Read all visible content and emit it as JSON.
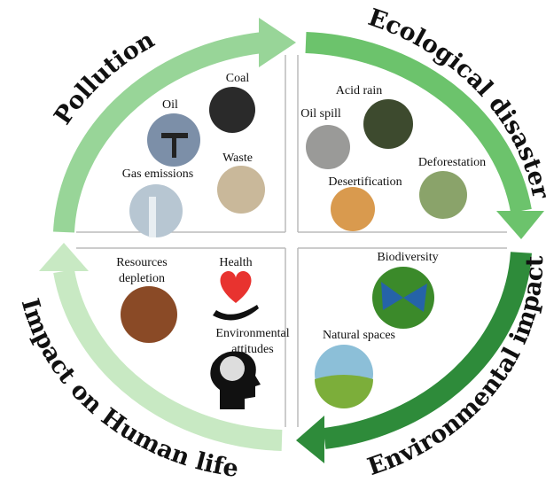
{
  "quadrants": [
    {
      "title": "Pollution",
      "items": [
        [
          "Coal"
        ],
        [
          "Oil"
        ],
        [
          "Waste"
        ],
        [
          "Gas emissions"
        ]
      ]
    },
    {
      "title": "Ecological disaster",
      "items": [
        [
          "Acid rain"
        ],
        [
          "Oil spill"
        ],
        [
          "Deforestation"
        ],
        [
          "Desertification"
        ]
      ]
    },
    {
      "title": "Environmental impact",
      "items": [
        [
          "Biodiversity"
        ],
        [
          "Natural spaces"
        ]
      ]
    },
    {
      "title": "Impact on Human life",
      "items": [
        [
          "Resources",
          "depletion"
        ],
        [
          "Health"
        ],
        [
          "Environmental",
          "attitudes"
        ]
      ]
    }
  ]
}
